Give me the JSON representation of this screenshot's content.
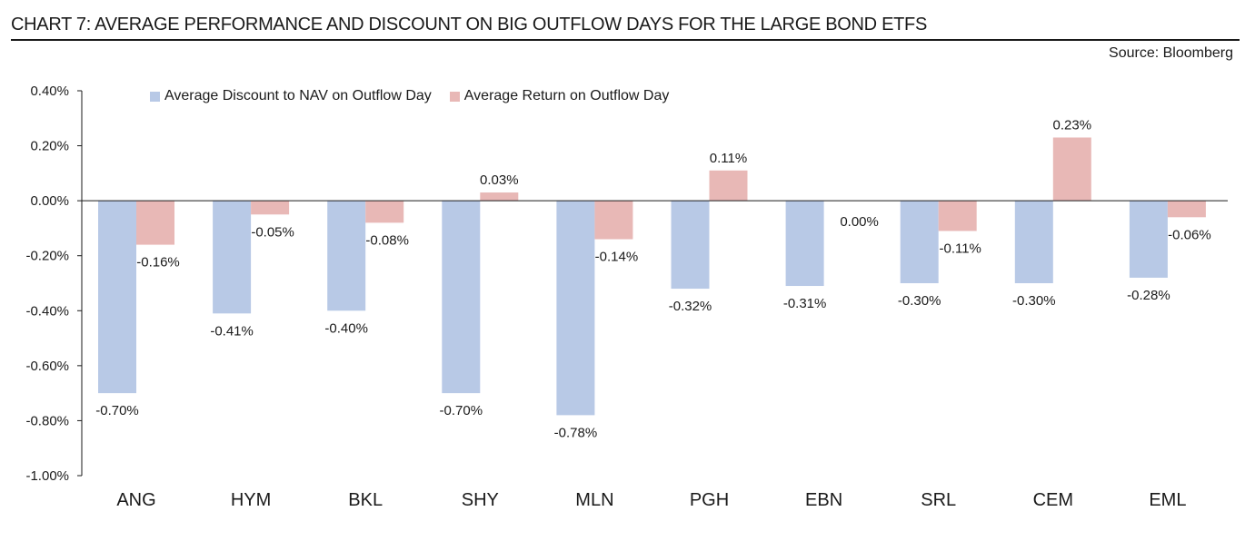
{
  "header": {
    "title": "CHART 7: AVERAGE PERFORMANCE AND DISCOUNT ON BIG OUTFLOW DAYS FOR THE LARGE BOND ETFS",
    "source": "Source: Bloomberg"
  },
  "colors": {
    "discount": "#b8c9e6",
    "return": "#e8b8b6",
    "axis": "#1a1a1a"
  },
  "chart_data": {
    "type": "bar",
    "title": "CHART 7: AVERAGE PERFORMANCE AND DISCOUNT ON BIG OUTFLOW DAYS FOR THE LARGE BOND ETFS",
    "xlabel": "",
    "ylabel": "",
    "ylim": [
      -1.0,
      0.4
    ],
    "yticks": [
      0.4,
      0.2,
      0.0,
      -0.2,
      -0.4,
      -0.6,
      -0.8,
      -1.0
    ],
    "ytick_labels": [
      "0.40%",
      "0.20%",
      "0.00%",
      "-0.20%",
      "-0.40%",
      "-0.60%",
      "-0.80%",
      "-1.00%"
    ],
    "grid": false,
    "legend": "top-left",
    "categories": [
      "ANG",
      "HYM",
      "BKL",
      "SHY",
      "MLN",
      "PGH",
      "EBN",
      "SRL",
      "CEM",
      "EML"
    ],
    "series": [
      {
        "name": "Average Discount to NAV on Outflow Day",
        "values": [
          -0.7,
          -0.41,
          -0.4,
          -0.7,
          -0.78,
          -0.32,
          -0.31,
          -0.3,
          -0.3,
          -0.28
        ],
        "labels": [
          "-0.70%",
          "-0.41%",
          "-0.40%",
          "-0.70%",
          "-0.78%",
          "-0.32%",
          "-0.31%",
          "-0.30%",
          "-0.30%",
          "-0.28%"
        ]
      },
      {
        "name": "Average Return on Outflow Day",
        "values": [
          -0.16,
          -0.05,
          -0.08,
          0.03,
          -0.14,
          0.11,
          0.0,
          -0.11,
          0.23,
          -0.06
        ],
        "labels": [
          "-0.16%",
          "-0.05%",
          "-0.08%",
          "0.03%",
          "-0.14%",
          "0.11%",
          "0.00%",
          "-0.11%",
          "0.23%",
          "-0.06%"
        ]
      }
    ]
  }
}
